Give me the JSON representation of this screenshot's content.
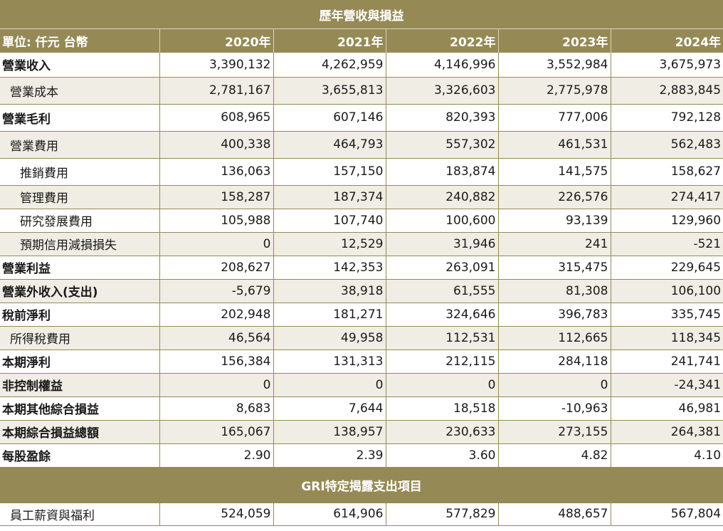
{
  "table": {
    "title": "歷年營收與損益",
    "header": {
      "unit_label": "單位: 仟元 台幣",
      "years": [
        "2020年",
        "2021年",
        "2022年",
        "2023年",
        "2024年"
      ]
    },
    "rows": [
      {
        "label": "營業收入",
        "values": [
          "3,390,132",
          "4,262,959",
          "4,146,996",
          "3,552,984",
          "3,675,973"
        ]
      },
      {
        "label": "營業成本",
        "values": [
          "2,781,167",
          "3,655,813",
          "3,326,603",
          "2,775,978",
          "2,883,845"
        ]
      },
      {
        "label": "營業毛利",
        "values": [
          "608,965",
          "607,146",
          "820,393",
          "777,006",
          "792,128"
        ]
      },
      {
        "label": "營業費用",
        "values": [
          "400,338",
          "464,793",
          "557,302",
          "461,531",
          "562,483"
        ]
      },
      {
        "label": "推銷費用",
        "values": [
          "136,063",
          "157,150",
          "183,874",
          "141,575",
          "158,627"
        ]
      },
      {
        "label": "管理費用",
        "values": [
          "158,287",
          "187,374",
          "240,882",
          "226,576",
          "274,417"
        ]
      },
      {
        "label": "研究發展費用",
        "values": [
          "105,988",
          "107,740",
          "100,600",
          "93,139",
          "129,960"
        ]
      },
      {
        "label": "預期信用減損損失",
        "values": [
          "0",
          "12,529",
          "31,946",
          "241",
          "-521"
        ]
      },
      {
        "label": "營業利益",
        "values": [
          "208,627",
          "142,353",
          "263,091",
          "315,475",
          "229,645"
        ]
      },
      {
        "label": "營業外收入(支出)",
        "values": [
          "-5,679",
          "38,918",
          "61,555",
          "81,308",
          "106,100"
        ]
      },
      {
        "label": "稅前淨利",
        "values": [
          "202,948",
          "181,271",
          "324,646",
          "396,783",
          "335,745"
        ]
      },
      {
        "label": "所得稅費用",
        "values": [
          "46,564",
          "49,958",
          "112,531",
          "112,665",
          "118,345"
        ]
      },
      {
        "label": "本期淨利",
        "values": [
          "156,384",
          "131,313",
          "212,115",
          "284,118",
          "241,741"
        ]
      },
      {
        "label": "非控制權益",
        "values": [
          "0",
          "0",
          "0",
          "0",
          "-24,341"
        ]
      },
      {
        "label": "本期其他綜合損益",
        "values": [
          "8,683",
          "7,644",
          "18,518",
          "-10,963",
          "46,981"
        ]
      },
      {
        "label": "本期綜合損益總額",
        "values": [
          "165,067",
          "138,957",
          "230,633",
          "273,155",
          "264,381"
        ]
      },
      {
        "label": "每股盈餘",
        "values": [
          "2.90",
          "2.39",
          "3.60",
          "4.82",
          "4.10"
        ]
      }
    ],
    "gri_section": {
      "title": "GRI特定揭露支出項目",
      "rows": [
        {
          "label": "員工薪資與福利",
          "values": [
            "524,059",
            "614,906",
            "577,829",
            "488,657",
            "567,804"
          ]
        }
      ]
    }
  }
}
